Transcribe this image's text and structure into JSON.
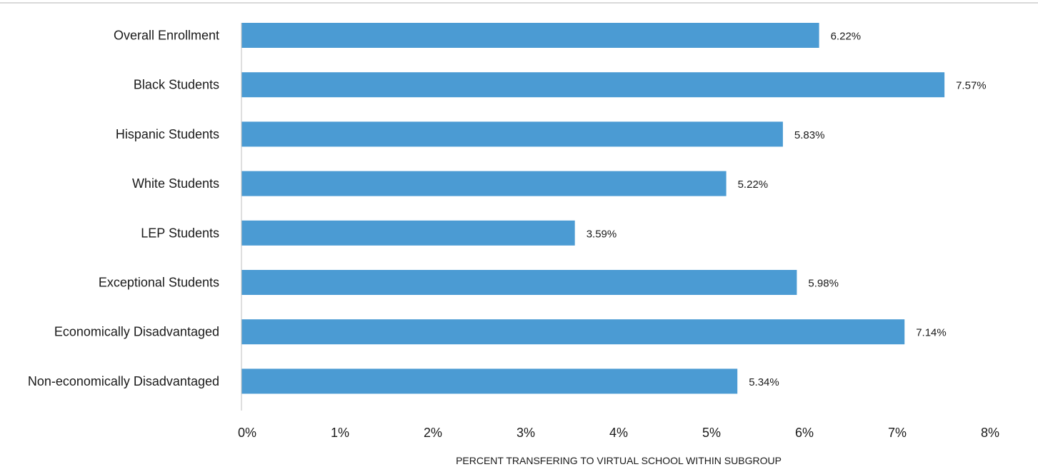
{
  "chart_data": {
    "type": "bar",
    "orientation": "horizontal",
    "title": "",
    "xlabel": "PERCENT TRANSFERING TO VIRTUAL SCHOOL WITHIN SUBGROUP",
    "ylabel": "",
    "categories": [
      "Overall Enrollment",
      "Black Students",
      "Hispanic Students",
      "White Students",
      "LEP Students",
      "Exceptional Students",
      "Economically Disadvantaged",
      "Non-economically Disadvantaged"
    ],
    "values": [
      6.22,
      7.57,
      5.83,
      5.22,
      3.59,
      5.98,
      7.14,
      5.34
    ],
    "value_labels": [
      "6.22%",
      "7.57%",
      "5.83%",
      "5.22%",
      "3.59%",
      "5.98%",
      "7.14%",
      "5.34%"
    ],
    "xlim": [
      0,
      8
    ],
    "x_ticks": [
      0,
      1,
      2,
      3,
      4,
      5,
      6,
      7,
      8
    ],
    "x_tick_labels": [
      "0%",
      "1%",
      "2%",
      "3%",
      "4%",
      "5%",
      "6%",
      "7%",
      "8%"
    ],
    "grid": false,
    "legend": "none",
    "bar_color": "#4b9bd3",
    "axis_color": "#bfbfbf"
  }
}
